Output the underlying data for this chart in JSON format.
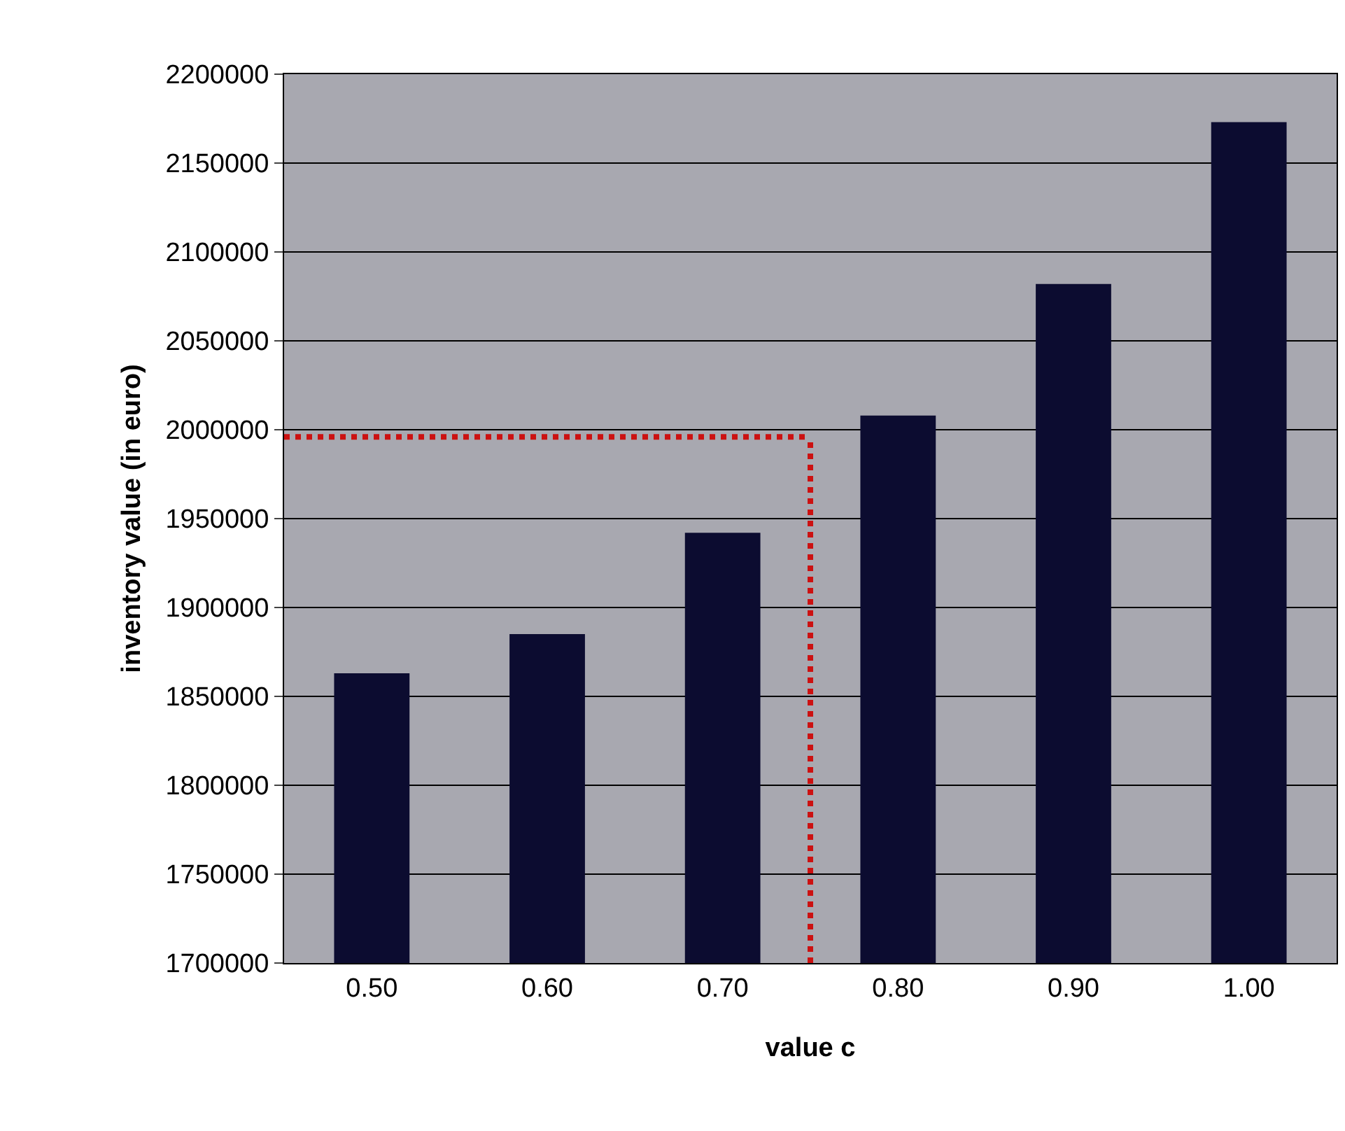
{
  "chart_data": {
    "type": "bar",
    "xlabel": "value c",
    "ylabel": "inventory value (in euro)",
    "x": [
      0.5,
      0.6,
      0.7,
      0.8,
      0.9,
      1.0
    ],
    "values": [
      1863000,
      1885000,
      1942000,
      2008000,
      2082000,
      2173000
    ],
    "color": "#0c0c30",
    "xlim": [
      0.45,
      1.05
    ],
    "xticks": [
      {
        "value": 0.5,
        "label": "0.50"
      },
      {
        "value": 0.6,
        "label": "0.60"
      },
      {
        "value": 0.7,
        "label": "0.70"
      },
      {
        "value": 0.8,
        "label": "0.80"
      },
      {
        "value": 0.9,
        "label": "0.90"
      },
      {
        "value": 1.0,
        "label": "1.00"
      }
    ],
    "ylim": [
      1700000,
      2200000
    ],
    "yticks": [
      1700000,
      1750000,
      1800000,
      1850000,
      1900000,
      1950000,
      2000000,
      2050000,
      2100000,
      2150000,
      2200000
    ],
    "grid": "y",
    "ref_lines": [
      {
        "axis": "y",
        "value": 1996000,
        "color": "#cc1111",
        "line_style": "dotted"
      },
      {
        "axis": "x",
        "value": 0.75,
        "color": "#cc1111",
        "line_style": "dotted"
      }
    ]
  }
}
